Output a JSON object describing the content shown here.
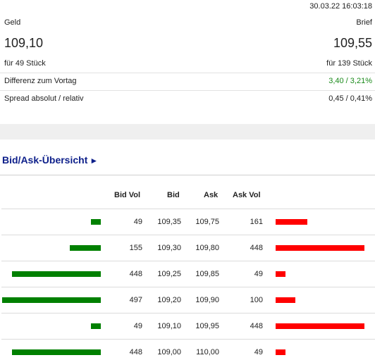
{
  "quote": {
    "timestamp": "30.03.22 16:03:18",
    "bid_label": "Geld",
    "ask_label": "Brief",
    "bid_price": "109,10",
    "ask_price": "109,55",
    "bid_size": "für 49 Stück",
    "ask_size": "für 139 Stück",
    "diff_label": "Differenz zum Vortag",
    "diff_value": "3,40 / 3,21%",
    "spread_label": "Spread absolut / relativ",
    "spread_value": "0,45 / 0,41%"
  },
  "colors": {
    "positive": "#1a8a1a",
    "bid_bar": "#008000",
    "ask_bar": "#ff0000",
    "title": "#0d1f8a"
  },
  "orderbook": {
    "title": "Bid/Ask-Übersicht",
    "title_icon": "play-arrow-icon",
    "columns": {
      "bid_vol": "Bid Vol",
      "bid": "Bid",
      "ask": "Ask",
      "ask_vol": "Ask Vol"
    },
    "max_volume": 500,
    "rows": [
      {
        "bid_vol": "49",
        "bid": "109,35",
        "ask": "109,75",
        "ask_vol": "161"
      },
      {
        "bid_vol": "155",
        "bid": "109,30",
        "ask": "109,80",
        "ask_vol": "448"
      },
      {
        "bid_vol": "448",
        "bid": "109,25",
        "ask": "109,85",
        "ask_vol": "49"
      },
      {
        "bid_vol": "497",
        "bid": "109,20",
        "ask": "109,90",
        "ask_vol": "100"
      },
      {
        "bid_vol": "49",
        "bid": "109,10",
        "ask": "109,95",
        "ask_vol": "448"
      },
      {
        "bid_vol": "448",
        "bid": "109,00",
        "ask": "110,00",
        "ask_vol": "49"
      }
    ]
  }
}
